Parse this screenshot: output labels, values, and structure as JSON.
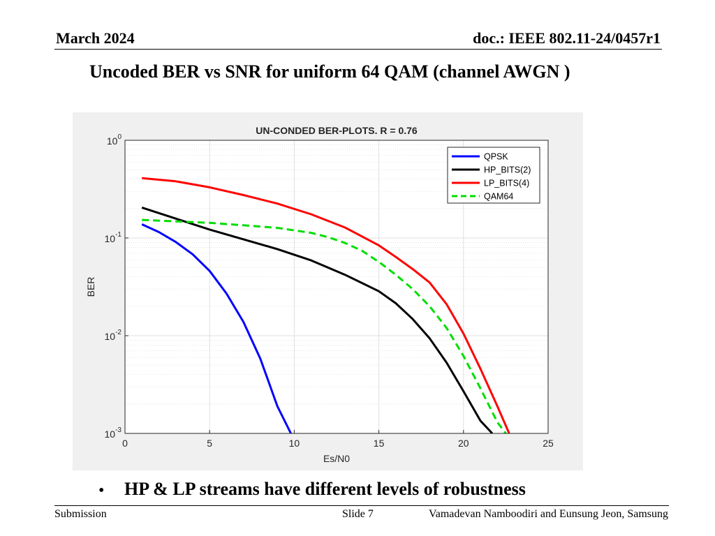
{
  "slide": {
    "date": "March  2024",
    "doc_id": "doc.: IEEE 802.11-24/0457r1",
    "title": "Uncoded BER vs SNR for uniform 64 QAM (channel AWGN )",
    "bullet": "HP  & LP streams have different levels of robustness",
    "footer_left": "Submission",
    "footer_center": "Slide 7",
    "footer_right": "Vamadevan Namboodiri and Eunsung Jeon, Samsung"
  },
  "chart_data": {
    "type": "line",
    "title": "UN-CONDED BER-PLOTS. R = 0.76",
    "xlabel": "Es/N0",
    "ylabel": "BER",
    "xlim": [
      0,
      25
    ],
    "ylim": [
      0.001,
      1
    ],
    "yscale": "log",
    "grid": true,
    "minor_grid": true,
    "legend_position": "top-right",
    "xticks": [
      "0",
      "5",
      "10",
      "15",
      "20",
      "25"
    ],
    "yticks": [
      {
        "base": "10",
        "exp": "0"
      },
      {
        "base": "10",
        "exp": "-1"
      },
      {
        "base": "10",
        "exp": "-2"
      },
      {
        "base": "10",
        "exp": "-3"
      }
    ],
    "series": [
      {
        "name": "QPSK",
        "color": "#0000ff",
        "dash": "solid",
        "points": [
          [
            1,
            0.138
          ],
          [
            2,
            0.115
          ],
          [
            3,
            0.091
          ],
          [
            4,
            0.068
          ],
          [
            5,
            0.046
          ],
          [
            6,
            0.027
          ],
          [
            7,
            0.0138
          ],
          [
            8,
            0.0058
          ],
          [
            9,
            0.0019
          ],
          [
            9.8,
            0.001
          ]
        ]
      },
      {
        "name": "HP_BITS(2)",
        "color": "#000000",
        "dash": "solid",
        "points": [
          [
            1,
            0.205
          ],
          [
            3,
            0.158
          ],
          [
            5,
            0.122
          ],
          [
            7,
            0.097
          ],
          [
            9,
            0.077
          ],
          [
            11,
            0.059
          ],
          [
            13,
            0.042
          ],
          [
            15,
            0.0285
          ],
          [
            16,
            0.0215
          ],
          [
            17,
            0.0148
          ],
          [
            18,
            0.0094
          ],
          [
            19,
            0.0053
          ],
          [
            20,
            0.0027
          ],
          [
            21,
            0.00135
          ],
          [
            21.7,
            0.001
          ]
        ]
      },
      {
        "name": "LP_BITS(4)",
        "color": "#ff0000",
        "dash": "solid",
        "points": [
          [
            1,
            0.41
          ],
          [
            3,
            0.38
          ],
          [
            5,
            0.33
          ],
          [
            7,
            0.275
          ],
          [
            9,
            0.225
          ],
          [
            11,
            0.175
          ],
          [
            13,
            0.128
          ],
          [
            15,
            0.084
          ],
          [
            16,
            0.064
          ],
          [
            17,
            0.048
          ],
          [
            18,
            0.035
          ],
          [
            19,
            0.021
          ],
          [
            20,
            0.0105
          ],
          [
            21,
            0.0046
          ],
          [
            22,
            0.0019
          ],
          [
            22.7,
            0.001
          ]
        ]
      },
      {
        "name": "QAM64",
        "color": "#00dd00",
        "dash": "dashed",
        "points": [
          [
            1,
            0.153
          ],
          [
            3,
            0.148
          ],
          [
            5,
            0.143
          ],
          [
            7,
            0.135
          ],
          [
            9,
            0.127
          ],
          [
            11,
            0.113
          ],
          [
            12,
            0.102
          ],
          [
            13,
            0.089
          ],
          [
            14,
            0.074
          ],
          [
            15,
            0.057
          ],
          [
            16,
            0.042
          ],
          [
            17,
            0.03
          ],
          [
            18,
            0.02
          ],
          [
            19,
            0.012
          ],
          [
            20,
            0.0062
          ],
          [
            21,
            0.0029
          ],
          [
            22,
            0.0013
          ],
          [
            22.5,
            0.001
          ]
        ]
      }
    ]
  }
}
